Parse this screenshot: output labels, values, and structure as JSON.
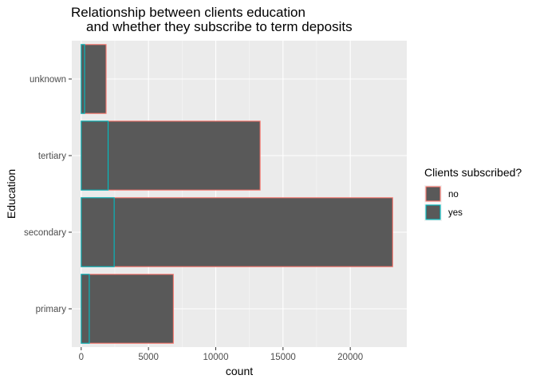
{
  "chart_data": {
    "type": "bar",
    "orientation": "horizontal",
    "position": "identity",
    "title": [
      "Relationship between clients education",
      "and whether they subscribe to term deposits"
    ],
    "xlabel": "count",
    "ylabel": "Education",
    "categories": [
      "primary",
      "secondary",
      "tertiary",
      "unknown"
    ],
    "xlim": [
      -700,
      24200
    ],
    "xticks": [
      0,
      5000,
      10000,
      15000,
      20000
    ],
    "xtick_labels": [
      "0",
      "5000",
      "10000",
      "15000",
      "20000"
    ],
    "grid": true,
    "legend_title": "Clients subscribed?",
    "legend_position": "right",
    "series": [
      {
        "name": "no",
        "values": [
          6850,
          23150,
          13300,
          1850
        ],
        "outline_color": "#F8766D",
        "fill_color": "#595959"
      },
      {
        "name": "yes",
        "values": [
          600,
          2450,
          2000,
          250
        ],
        "outline_color": "#00BFC4",
        "fill_color": "#595959"
      }
    ]
  }
}
